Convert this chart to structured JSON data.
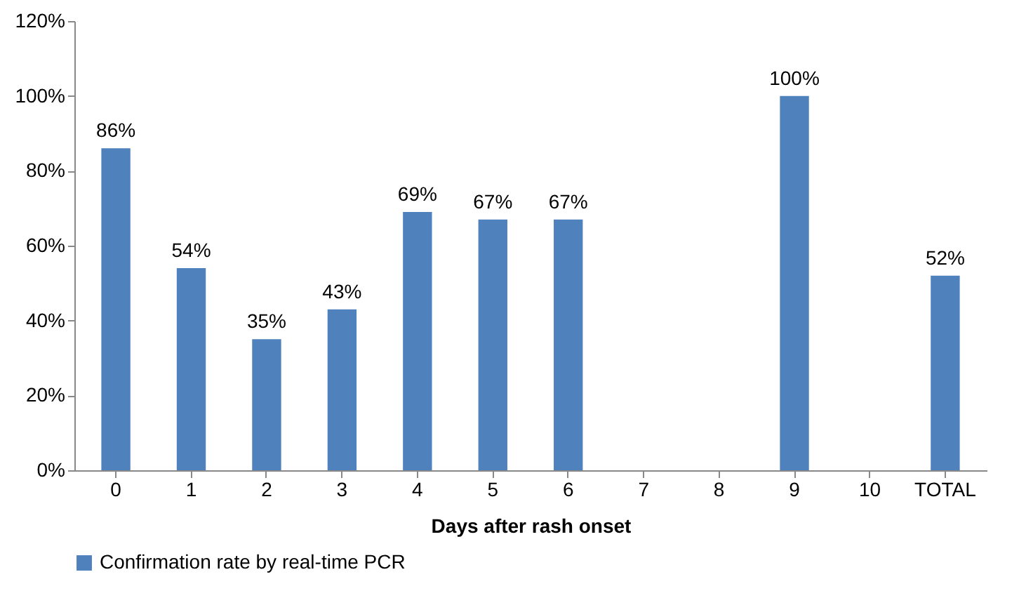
{
  "chart_data": {
    "type": "bar",
    "xlabel": "Days after rash onset",
    "categories": [
      "0",
      "1",
      "2",
      "3",
      "4",
      "5",
      "6",
      "7",
      "8",
      "9",
      "10",
      "TOTAL"
    ],
    "series": [
      {
        "name": "Confirmation rate by real-time PCR",
        "color": "#4f81bd",
        "values": [
          86,
          54,
          35,
          43,
          69,
          67,
          67,
          null,
          null,
          100,
          null,
          52
        ],
        "value_labels": [
          "86%",
          "54%",
          "35%",
          "43%",
          "69%",
          "67%",
          "67%",
          null,
          null,
          "100%",
          null,
          "52%"
        ]
      }
    ],
    "ylim": [
      0,
      120
    ],
    "yticks": [
      {
        "value": 0,
        "label": "0%"
      },
      {
        "value": 20,
        "label": "20%"
      },
      {
        "value": 40,
        "label": "40%"
      },
      {
        "value": 60,
        "label": "60%"
      },
      {
        "value": 80,
        "label": "80%"
      },
      {
        "value": 100,
        "label": "100%"
      },
      {
        "value": 120,
        "label": "120%"
      }
    ],
    "legend": "bottom"
  }
}
